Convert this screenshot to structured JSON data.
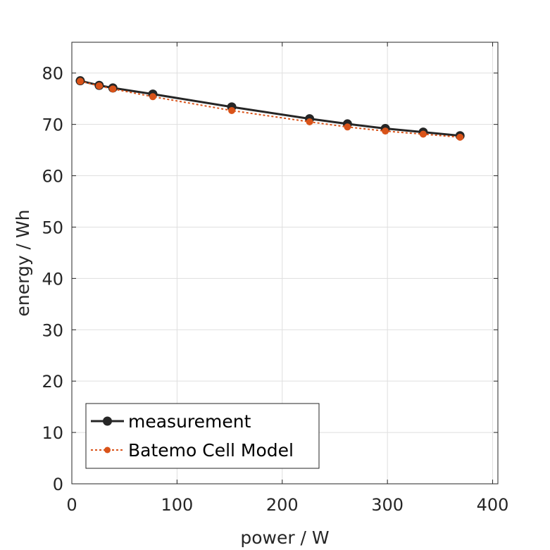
{
  "chart_data": {
    "type": "line",
    "xlabel": "power / W",
    "ylabel": "energy / Wh",
    "xlim": [
      0,
      405
    ],
    "ylim": [
      0,
      86
    ],
    "xticks": [
      0,
      100,
      200,
      300,
      400
    ],
    "yticks": [
      0,
      10,
      20,
      30,
      40,
      50,
      60,
      70,
      80
    ],
    "xtick_labels": [
      "0",
      "100",
      "200",
      "300",
      "400"
    ],
    "ytick_labels": [
      "0",
      "10",
      "20",
      "30",
      "40",
      "50",
      "60",
      "70",
      "80"
    ],
    "grid": true,
    "legend_position": "bottom-left",
    "series": [
      {
        "name": "measurement",
        "color": "#262626",
        "line_style": "solid",
        "marker": "circle",
        "x": [
          8,
          26,
          39,
          77,
          152,
          226,
          262,
          298,
          334,
          369
        ],
        "y": [
          78.5,
          77.6,
          77.1,
          75.9,
          73.4,
          71.1,
          70.1,
          69.2,
          68.5,
          67.8
        ]
      },
      {
        "name": "Batemo Cell Model",
        "color": "#d95319",
        "line_style": "dotted",
        "marker": "circle",
        "x": [
          8,
          26,
          39,
          77,
          152,
          226,
          262,
          298,
          334,
          369
        ],
        "y": [
          78.4,
          77.5,
          76.9,
          75.4,
          72.7,
          70.5,
          69.5,
          68.7,
          68.1,
          67.5
        ]
      }
    ]
  }
}
